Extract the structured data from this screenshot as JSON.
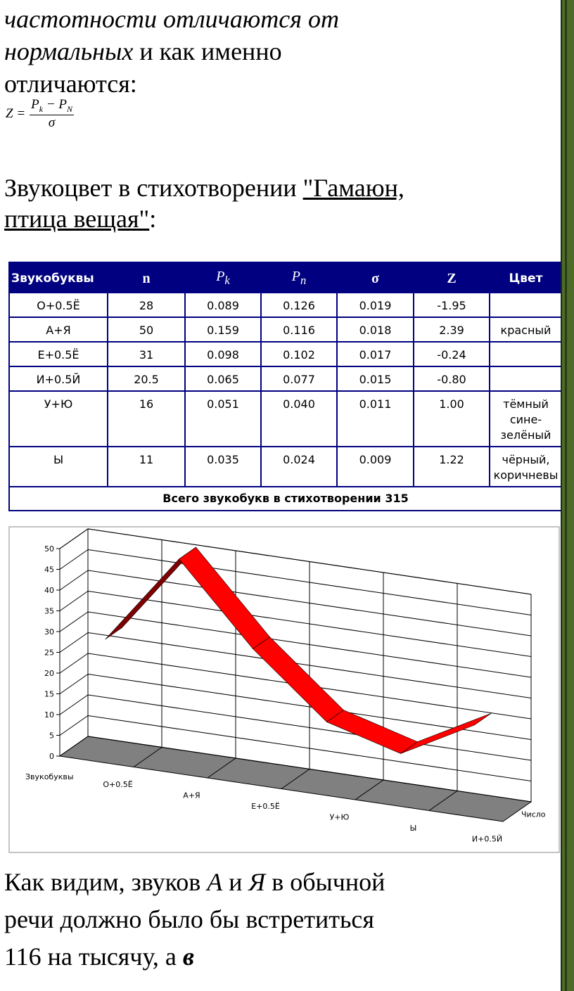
{
  "paragraphs": [
    {
      "lines": [
        [
          {
            "text": "частотности отличаются от",
            "italic": true
          }
        ],
        [
          {
            "text": "нормальных",
            "italic": true
          },
          {
            "text": " и как именно"
          }
        ],
        [
          {
            "text": "отличаются:"
          }
        ]
      ]
    },
    {
      "lines": [
        [
          {
            "text": "Звукоцвет в стихотворении "
          },
          {
            "text": "\"Гамаюн,",
            "underline": true
          }
        ],
        [
          {
            "text": "птица вещая\"",
            "underline": true
          },
          {
            "text": ":"
          }
        ]
      ]
    },
    {
      "lines": [
        [
          {
            "text": "Как видим, звуков "
          },
          {
            "text": "А",
            "italic": true
          },
          {
            "text": " и "
          },
          {
            "text": "Я",
            "italic": true
          },
          {
            "text": " в обычной"
          }
        ],
        [
          {
            "text": "речи должно было бы встретиться"
          }
        ],
        [
          {
            "text": "116 на тысячу, а "
          },
          {
            "text": "в",
            "italic": true,
            "bold": true
          }
        ]
      ]
    }
  ],
  "formula": {
    "lhs": "Z",
    "eq": "=",
    "num": [
      {
        "base": "P",
        "sub": "k"
      },
      {
        "base": "P",
        "sub": "N"
      }
    ],
    "minus": "−",
    "den": "σ"
  },
  "table": {
    "header": [
      "Звукобуквы",
      "n",
      {
        "base": "P",
        "sub": "k"
      },
      {
        "base": "P",
        "sub": "n"
      },
      "σ",
      "Z",
      "Цвет"
    ],
    "rows": [
      [
        "О+0.5Ё",
        "28",
        "0.089",
        "0.126",
        "0.019",
        "-1.95",
        null
      ],
      [
        "А+Я",
        "50",
        "0.159",
        "0.116",
        "0.018",
        "2.39",
        "красный"
      ],
      [
        "Е+0.5Ё",
        "31",
        "0.098",
        "0.102",
        "0.017",
        "-0.24",
        null
      ],
      [
        "И+0.5Й",
        "20.5",
        "0.065",
        "0.077",
        "0.015",
        "-0.80",
        null
      ],
      [
        "У+Ю",
        "16",
        "0.051",
        "0.040",
        "0.011",
        "1.00",
        "тёмный сине-зелёный"
      ],
      [
        "Ы",
        "11",
        "0.035",
        "0.024",
        "0.009",
        "1.22",
        "чёрный, коричневы"
      ]
    ],
    "footer": "Всего звукобукв в стихотворении 315"
  },
  "chart_data": {
    "type": "line3d",
    "xlabel": "Звукобуквы",
    "categories": [
      "О+0.5Ё",
      "А+Я",
      "Е+0.5Ё",
      "У+Ю",
      "Ы",
      "И+0.5Й"
    ],
    "series": [
      {
        "name": "Число",
        "color": "#ff0000",
        "underside_color": "#800000",
        "values": [
          28,
          50,
          31,
          16,
          11,
          20.5
        ]
      }
    ],
    "ylim": [
      0,
      50
    ],
    "yticks": [
      0,
      5,
      10,
      15,
      20,
      25,
      30,
      35,
      40,
      45,
      50
    ],
    "grid": true
  }
}
